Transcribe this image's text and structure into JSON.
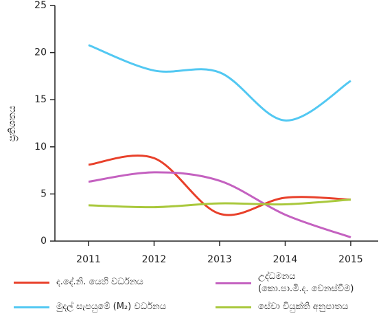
{
  "chart_data": {
    "type": "line",
    "y_label": "ප්‍රතිශතය",
    "categories": [
      "2011",
      "2012",
      "2013",
      "2014",
      "2015"
    ],
    "series": [
      {
        "name": "ද.දේ.නි. යෙහි වර්ධනය",
        "color": "#e8402a",
        "values": [
          8.1,
          8.8,
          2.9,
          4.6,
          4.4
        ]
      },
      {
        "name": "උද්ධමනය\n(කො.පා.මි.ද. වෙනස්වීම)",
        "color": "#c461c0",
        "values": [
          6.3,
          7.3,
          6.4,
          2.8,
          0.4
        ]
      },
      {
        "name": "මුදල් සැපයුමේ (M₂) වර්ධනය",
        "color": "#52c8f2",
        "values": [
          20.8,
          18.1,
          17.9,
          12.8,
          17.0
        ]
      },
      {
        "name": "සේවා වියුක්ති අනුපාතය",
        "color": "#a9c83c",
        "values": [
          3.8,
          3.6,
          4.0,
          3.9,
          4.4
        ]
      }
    ],
    "ylim": [
      0,
      25
    ],
    "yticks": [
      0,
      5,
      10,
      15,
      20,
      25
    ]
  }
}
